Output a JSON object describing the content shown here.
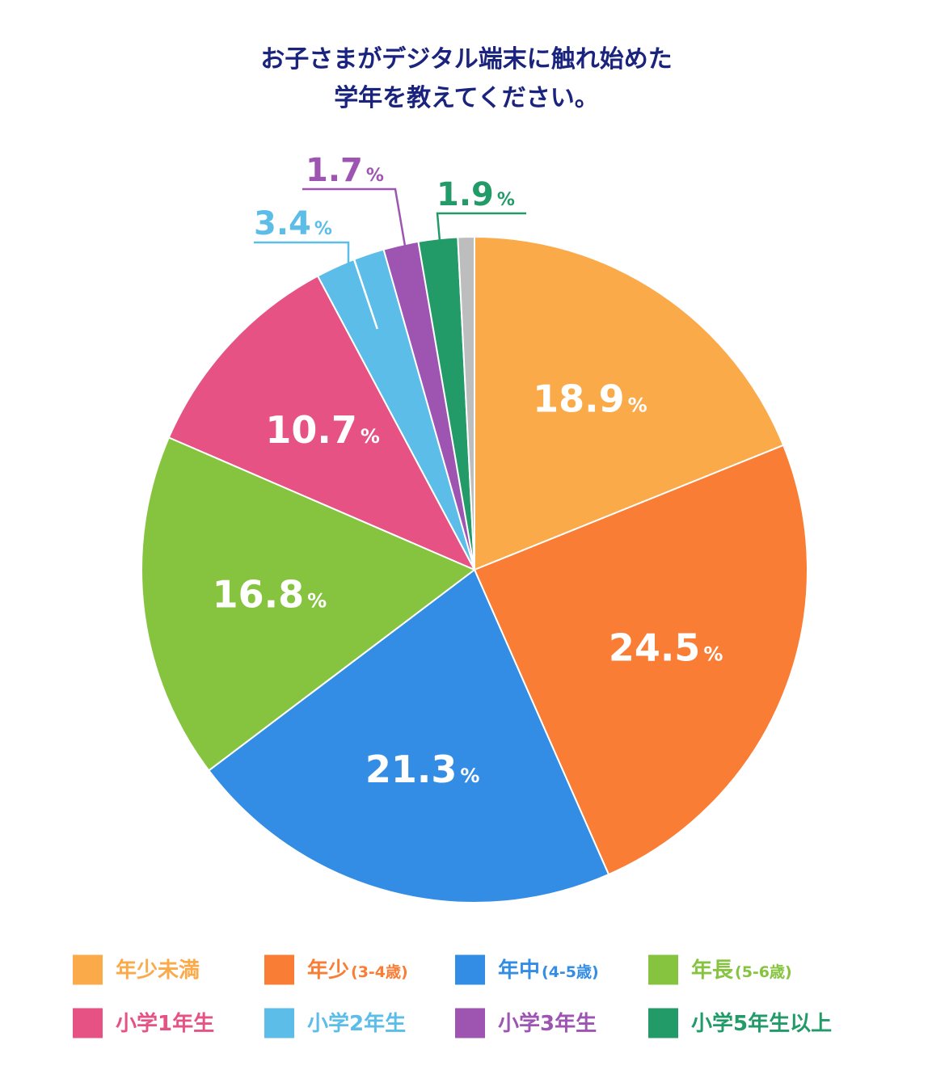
{
  "chart_data": {
    "type": "pie",
    "title": [
      "お子さまがデジタル端末に触れ始めた",
      "学年を教えてください。"
    ],
    "percent_sign": "%",
    "slices": [
      {
        "name": "年少未満",
        "sub": "",
        "value": 18.9,
        "label": "18.9",
        "color": "#fbaa4a"
      },
      {
        "name": "年少",
        "sub": "(3-4歳)",
        "value": 24.5,
        "label": "24.5",
        "color": "#f97d34"
      },
      {
        "name": "年中",
        "sub": "(4-5歳)",
        "value": 21.3,
        "label": "21.3",
        "color": "#348de4"
      },
      {
        "name": "年長",
        "sub": "(5-6歳)",
        "value": 16.8,
        "label": "16.8",
        "color": "#86c440"
      },
      {
        "name": "小学1年生",
        "sub": "",
        "value": 10.7,
        "label": "10.7",
        "color": "#e65283"
      },
      {
        "name": "小学2年生",
        "sub": "",
        "value": 3.4,
        "label": "3.4",
        "color": "#5cbde8"
      },
      {
        "name": "小学3年生",
        "sub": "",
        "value": 1.7,
        "label": "1.7",
        "color": "#9e55b1"
      },
      {
        "name": "小学5年生以上",
        "sub": "",
        "value": 1.9,
        "label": "1.9",
        "color": "#229b68"
      },
      {
        "name": "",
        "sub": "",
        "value": 0.8,
        "label": "",
        "color": "#bdbdbd"
      }
    ],
    "legend_placement": "bottom"
  }
}
